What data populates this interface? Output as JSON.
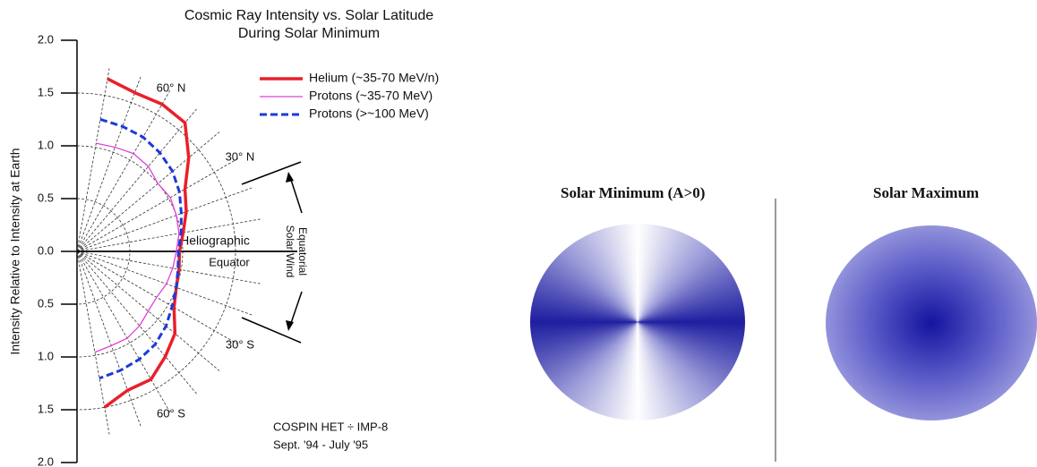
{
  "chart_data": {
    "type": "polar",
    "title": "Cosmic Ray Intensity vs. Solar Latitude",
    "subtitle": "During Solar Minimum",
    "y_label": "Intensity Relative to Intensity at Earth",
    "x": [
      80,
      70,
      60,
      50,
      40,
      30,
      20,
      10,
      0,
      -10,
      -20,
      -30,
      -40,
      -50,
      -60,
      -70,
      -80
    ],
    "series": [
      {
        "name": "Helium (~35-70 MeV/n)",
        "color": "#e8202a",
        "style": "solid",
        "values": [
          1.66,
          1.6,
          1.61,
          1.59,
          1.38,
          1.18,
          1.1,
          1.02,
          0.97,
          0.98,
          1.0,
          1.06,
          1.21,
          1.3,
          1.4,
          1.4,
          1.5
        ]
      },
      {
        "name": "Protons (~35-70 MeV)",
        "color": "#e040d8",
        "style": "solid",
        "values": [
          1.04,
          1.05,
          1.07,
          1.05,
          1.0,
          1.02,
          1.0,
          0.98,
          0.94,
          0.92,
          0.9,
          0.87,
          0.88,
          0.92,
          0.95,
          0.95,
          0.97
        ]
      },
      {
        "name": "Protons (>~100 MeV)",
        "color": "#1c3ad8",
        "style": "dashed",
        "values": [
          1.27,
          1.26,
          1.25,
          1.22,
          1.18,
          1.12,
          1.05,
          1.0,
          0.96,
          0.97,
          1.0,
          1.04,
          1.1,
          1.15,
          1.18,
          1.2,
          1.22
        ]
      }
    ],
    "ylim": [
      -2,
      2
    ],
    "yticks": [
      {
        "value": 2,
        "label": "2.0"
      },
      1.5,
      {
        "value": 1,
        "label": "1.0"
      },
      0.5,
      {
        "value": 0,
        "label": "0.0"
      },
      {
        "value": -0.5,
        "label": "0.5"
      },
      {
        "value": -1,
        "label": "1.0"
      },
      {
        "value": -1.5,
        "label": "1.5"
      },
      {
        "value": -2,
        "label": "2.0"
      }
    ],
    "lat_labels": [
      {
        "value": 60,
        "label": "60° N"
      },
      {
        "value": 30,
        "label": "30° N"
      },
      {
        "value": -30,
        "label": "30° S"
      },
      {
        "value": -60,
        "label": "60° S"
      }
    ],
    "annotations": [
      "Heliographic",
      "Equator",
      "Equatorial",
      "Solar Wind",
      "COSPIN HET ÷ IMP-8",
      "Sept. '94 - July '95"
    ]
  },
  "panels": [
    {
      "title": "Solar Minimum (A>0)"
    },
    {
      "title": "Solar Maximum"
    }
  ]
}
